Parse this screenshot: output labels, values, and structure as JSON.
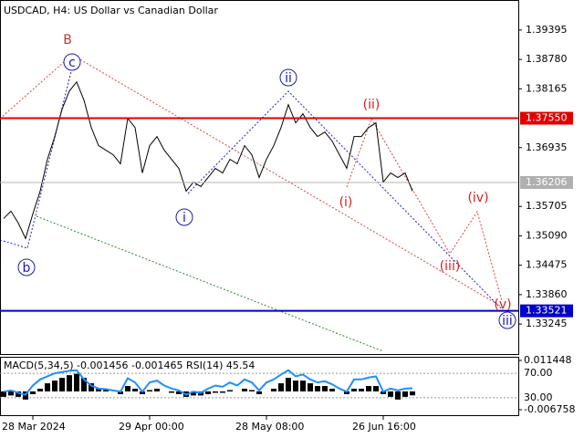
{
  "chart_data": [
    {
      "type": "line",
      "title": "USDCAD, H4:  US Dollar vs Canadian Dollar",
      "color": "#000000",
      "categories": [
        null,
        null,
        null,
        null,
        "28 Mar 2024",
        null,
        null,
        null,
        null,
        null,
        null,
        null,
        null,
        null,
        null,
        null,
        null,
        null,
        null,
        null,
        "29 Apr 00:00",
        null,
        null,
        null,
        null,
        null,
        null,
        null,
        null,
        null,
        null,
        null,
        null,
        null,
        null,
        null,
        "28 May 08:00",
        null,
        null,
        null,
        null,
        null,
        null,
        null,
        null,
        null,
        null,
        null,
        null,
        null,
        null,
        null,
        "26 Jun 16:00",
        null,
        null,
        null,
        null
      ],
      "values": [
        1.35453,
        1.35606,
        1.35358,
        1.35034,
        1.35549,
        1.36025,
        1.36691,
        1.37167,
        1.37738,
        1.38119,
        1.38309,
        1.37929,
        1.37357,
        1.36977,
        1.36881,
        1.36786,
        1.36596,
        1.37548,
        1.37357,
        1.36405,
        1.36977,
        1.37167,
        1.36881,
        1.36691,
        1.36501,
        1.36025,
        1.36215,
        1.3612,
        1.3631,
        1.36501,
        1.36405,
        1.36691,
        1.36596,
        1.36977,
        1.36786,
        1.3631,
        1.36691,
        1.36977,
        1.37357,
        1.37833,
        1.37453,
        1.37643,
        1.37357,
        1.37167,
        1.37262,
        1.37072,
        1.36786,
        1.36501,
        1.37167,
        1.37167,
        1.37357,
        1.37453,
        1.36215,
        1.36405,
        1.3631,
        1.36405,
        1.36025
      ],
      "ylim": [
        1.32617,
        1.40023
      ],
      "yticks": [
        1.39395,
        {
          "value": 1.3878,
          "label": "1.38780"
        },
        1.38165,
        1.36935,
        1.35705,
        {
          "value": 1.3509,
          "label": "1.35090"
        },
        1.34475,
        {
          "value": 1.3386,
          "label": "1.33860"
        },
        1.33245
      ],
      "levels": [
        {
          "value": 1.3755,
          "label": "1.37550",
          "color": "#e00000"
        },
        {
          "value": 1.36206,
          "label": "1.36206",
          "color": "#b0b0b0"
        },
        {
          "value": 1.33521,
          "label": "1.33521",
          "color": "#0000cc"
        }
      ],
      "annotations": [
        {
          "text": "B",
          "color": "#c0392b",
          "circled": false
        },
        {
          "text": "c",
          "color": "#1a1ab0",
          "circled": true
        },
        {
          "text": "b",
          "color": "#1a1ab0",
          "circled": true
        },
        {
          "text": "i",
          "color": "#1a1ab0",
          "circled": true
        },
        {
          "text": "ii",
          "color": "#1a1ab0",
          "circled": true
        },
        {
          "text": "iii",
          "color": "#1a1ab0",
          "circled": true
        },
        {
          "text": "(i)",
          "color": "#d62020",
          "circled": false
        },
        {
          "text": "(ii)",
          "color": "#d62020",
          "circled": false
        },
        {
          "text": "(iii)",
          "color": "#d62020",
          "circled": false
        },
        {
          "text": "(iv)",
          "color": "#d62020",
          "circled": false
        },
        {
          "text": "(v)",
          "color": "#d62020",
          "circled": false
        }
      ]
    },
    {
      "type": "macd-rsi",
      "title": "MACD(5,34,5) -0.001456 -0.001465 RSI(14) 45.54",
      "series": [
        {
          "color": "#000000",
          "values": [
            -0.002,
            -0.0015,
            -0.002,
            -0.003,
            -0.001,
            0.001,
            0.003,
            0.004,
            0.005,
            0.006,
            0.0065,
            0.005,
            0.003,
            0.001,
            0.0005,
            0,
            -0.001,
            0.002,
            0.001,
            -0.001,
            0.0005,
            0.001,
            0,
            -0.0005,
            -0.001,
            -0.002,
            -0.0015,
            -0.0015,
            -0.001,
            -0.0005,
            -0.0005,
            0.0005,
            0,
            0.001,
            0.0005,
            -0.001,
            0,
            0.001,
            0.003,
            0.005,
            0.004,
            0.004,
            0.003,
            0.002,
            0.002,
            0.001,
            0,
            -0.001,
            0.001,
            0.001,
            0.002,
            0.002,
            -0.001,
            -0.002,
            -0.003,
            -0.002,
            -0.001456
          ]
        },
        {
          "color": "#1e90ff",
          "axis": "y2",
          "values": [
            40,
            42,
            38,
            35,
            50,
            60,
            65,
            70,
            72,
            74,
            75,
            60,
            50,
            45,
            44,
            42,
            40,
            62,
            55,
            40,
            55,
            58,
            50,
            45,
            42,
            35,
            40,
            38,
            45,
            50,
            48,
            55,
            50,
            60,
            55,
            42,
            55,
            60,
            68,
            75,
            65,
            68,
            60,
            55,
            57,
            52,
            45,
            40,
            60,
            60,
            63,
            65,
            40,
            45,
            42,
            45,
            45.54
          ]
        }
      ],
      "ylim": [
        -0.009118,
        0.013471
      ],
      "yticks": [
        0.011448,
        -0.006758
      ],
      "y2lim": [
        0,
        100
      ],
      "y2ticks": [
        {
          "value": 70,
          "label": "70.00"
        },
        {
          "value": 30,
          "label": "30.00"
        }
      ]
    }
  ]
}
